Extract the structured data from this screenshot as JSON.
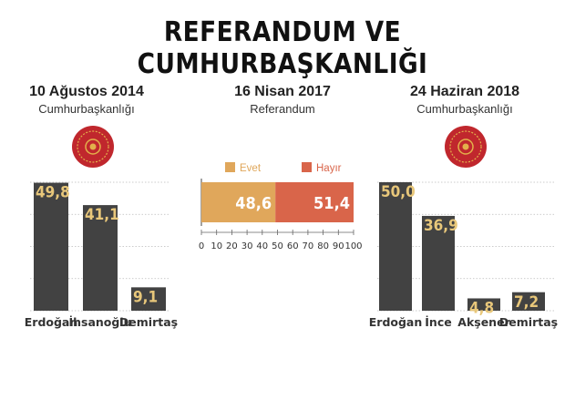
{
  "title": "REFERANDUM VE CUMHURBAŞKANLIĞI",
  "colors": {
    "bar": "#424242",
    "value_text": "#e8c77a",
    "evet": "#e0a75b",
    "hayir": "#d9654a",
    "seal": "#c0272d",
    "seal_gold": "#e3b04b"
  },
  "icons": {
    "seal": "presidential-seal-icon"
  },
  "chart_data": [
    {
      "type": "bar",
      "title": "10 Ağustos 2014",
      "subtitle": "Cumhurbaşkanlığı",
      "categories": [
        "Erdoğan",
        "İhsanoğlu",
        "Demirtaş"
      ],
      "values": [
        49.8,
        41.1,
        9.1
      ],
      "value_labels": [
        "49,8",
        "41,1",
        "9,1"
      ],
      "ylim": [
        0,
        50
      ],
      "grid": true
    },
    {
      "type": "bar",
      "orientation": "horizontal-stacked",
      "title": "16 Nisan 2017",
      "subtitle": "Referandum",
      "series": [
        {
          "name": "Evet",
          "values": [
            48.6
          ],
          "value_label": "48,6"
        },
        {
          "name": "Hayır",
          "values": [
            51.4
          ],
          "value_label": "51,4"
        }
      ],
      "xlim": [
        0,
        100
      ],
      "xticks": [
        "0",
        "10",
        "20",
        "30",
        "40",
        "50",
        "60",
        "70",
        "80",
        "90",
        "100"
      ],
      "legend": "top"
    },
    {
      "type": "bar",
      "title": "24 Haziran 2018",
      "subtitle": "Cumhurbaşkanlığı",
      "categories": [
        "Erdoğan",
        "İnce",
        "Akşener",
        "Demirtaş"
      ],
      "values": [
        50.0,
        36.9,
        4.8,
        7.2
      ],
      "value_labels": [
        "50,0",
        "36,9",
        "4,8",
        "7,2"
      ],
      "ylim": [
        0,
        50
      ],
      "grid": true
    }
  ]
}
